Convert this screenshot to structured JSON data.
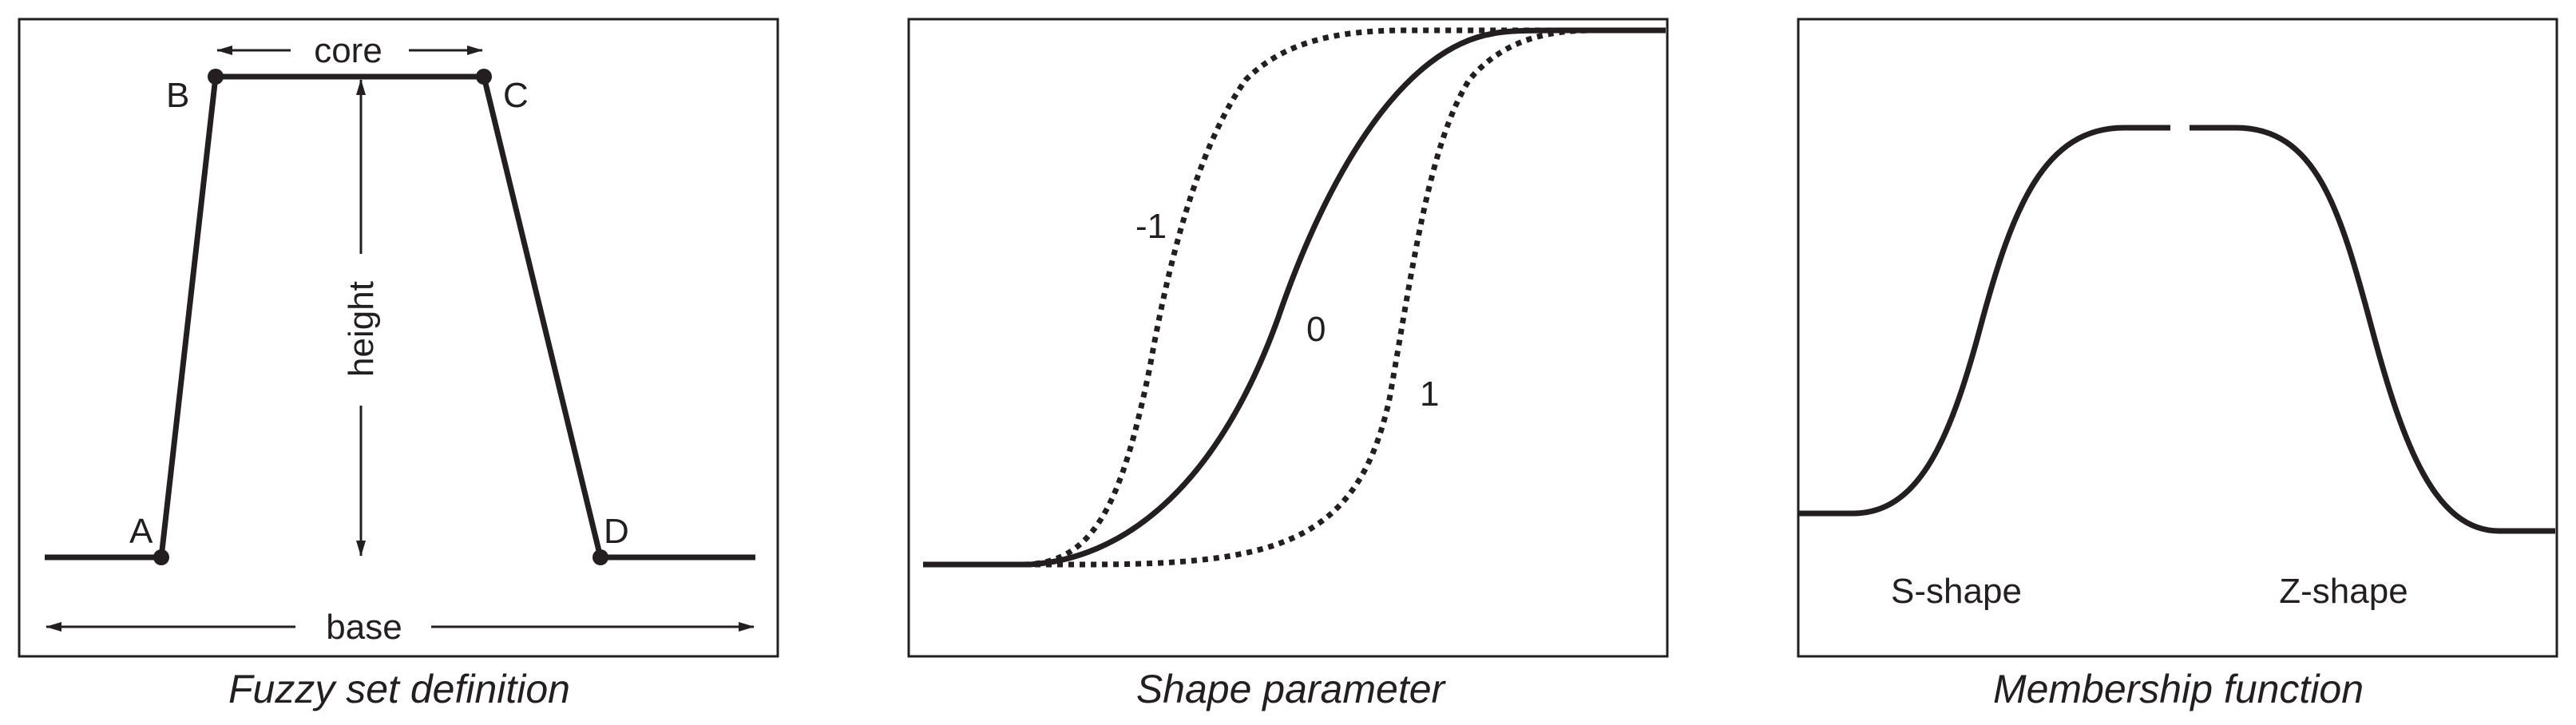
{
  "panels": [
    {
      "caption": "Fuzzy set definition",
      "points": {
        "a": "A",
        "b": "B",
        "c": "C",
        "d": "D"
      },
      "core_label": "core",
      "height_label": "height",
      "base_label": "base"
    },
    {
      "caption": "Shape parameter",
      "curve_labels": {
        "minus_one": "-1",
        "zero": "0",
        "one": "1"
      }
    },
    {
      "caption": "Membership function",
      "s_shape_label": "S-shape",
      "z_shape_label": "Z-shape"
    }
  ],
  "colors": {
    "ink": "#231f20",
    "background": "#ffffff"
  }
}
